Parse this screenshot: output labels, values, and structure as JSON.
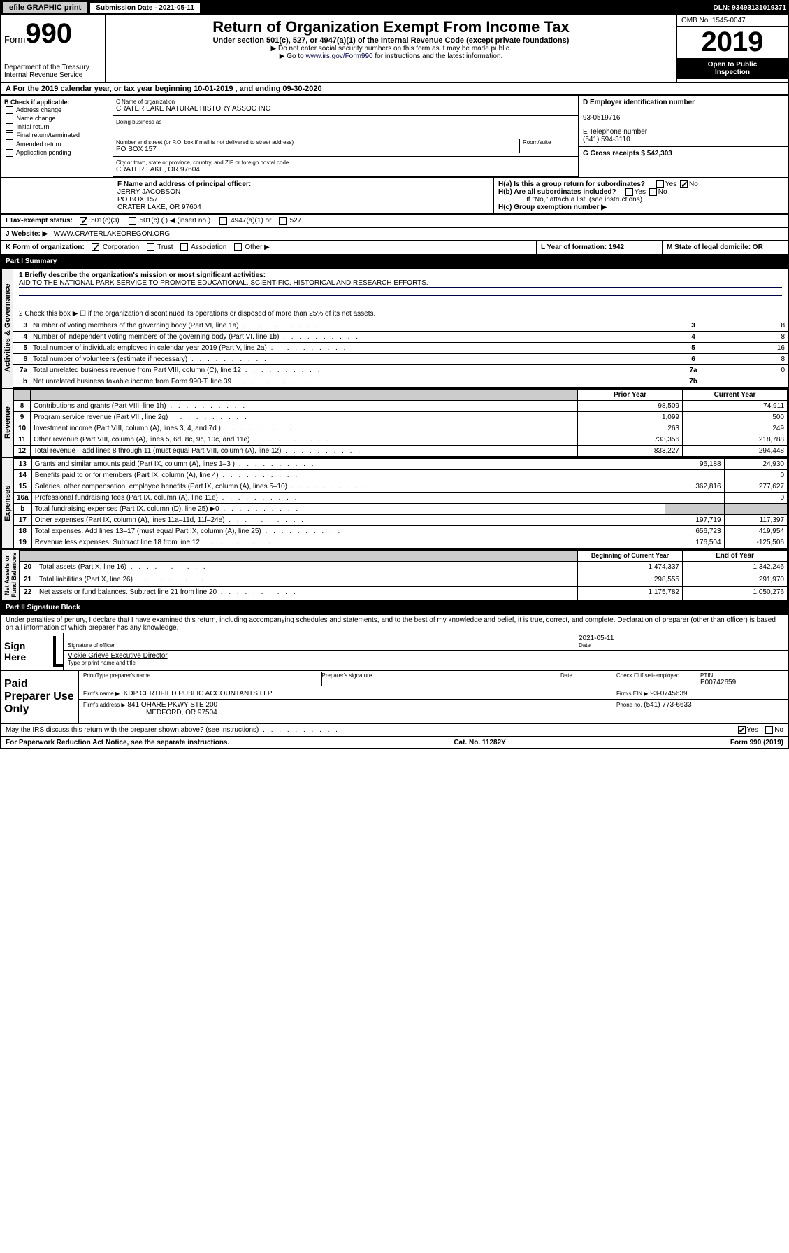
{
  "header": {
    "efile_label": "efile GRAPHIC print",
    "submission_label": "Submission Date - 2021-05-11",
    "dln": "DLN: 93493131019371"
  },
  "form_id": {
    "form_word": "Form",
    "form_num": "990",
    "dept": "Department of the Treasury\nInternal Revenue Service"
  },
  "title_block": {
    "title": "Return of Organization Exempt From Income Tax",
    "sub1": "Under section 501(c), 527, or 4947(a)(1) of the Internal Revenue Code (except private foundations)",
    "sub2": "▶ Do not enter social security numbers on this form as it may be made public.",
    "sub3_pre": "▶ Go to ",
    "sub3_link": "www.irs.gov/Form990",
    "sub3_post": " for instructions and the latest information."
  },
  "right_box": {
    "omb": "OMB No. 1545-0047",
    "year": "2019",
    "open1": "Open to Public",
    "open2": "Inspection"
  },
  "a_row": "A For the 2019 calendar year, or tax year beginning 10-01-2019    , and ending 09-30-2020",
  "col_b": {
    "header": "B Check if applicable:",
    "items": [
      "Address change",
      "Name change",
      "Initial return",
      "Final return/terminated",
      "Amended return",
      "Application pending"
    ]
  },
  "name_block": {
    "c_label": "C Name of organization",
    "org": "CRATER LAKE NATURAL HISTORY ASSOC INC",
    "dba_label": "Doing business as",
    "addr_label": "Number and street (or P.O. box if mail is not delivered to street address)",
    "room_label": "Room/suite",
    "addr": "PO BOX 157",
    "city_label": "City or town, state or province, country, and ZIP or foreign postal code",
    "city": "CRATER LAKE, OR  97604"
  },
  "col_r": {
    "d_label": "D Employer identification number",
    "ein": "93-0519716",
    "e_label": "E Telephone number",
    "phone": "(541) 594-3110",
    "g_label": "G Gross receipts $ 542,303"
  },
  "f_block": {
    "label": "F  Name and address of principal officer:",
    "name": "JERRY JACOBSON",
    "addr1": "PO BOX 157",
    "addr2": "CRATER LAKE, OR  97604"
  },
  "h_block": {
    "ha": "H(a)  Is this a group return for subordinates?",
    "hb": "H(b)  Are all subordinates included?",
    "note": "If \"No,\" attach a list. (see instructions)",
    "hc": "H(c)  Group exemption number ▶"
  },
  "tax_status": {
    "label": "I  Tax-exempt status:",
    "opt1": "501(c)(3)",
    "opt2": "501(c) (   ) ◀ (insert no.)",
    "opt3": "4947(a)(1) or",
    "opt4": "527"
  },
  "website": {
    "label": "J  Website: ▶",
    "value": "WWW.CRATERLAKEOREGON.ORG"
  },
  "k_row": {
    "label": "K Form of organization:",
    "opts": [
      "Corporation",
      "Trust",
      "Association",
      "Other ▶"
    ],
    "l_label": "L Year of formation: 1942",
    "m_label": "M State of legal domicile: OR"
  },
  "part1_header": "Part I      Summary",
  "gov": {
    "l1": "1  Briefly describe the organization's mission or most significant activities:",
    "l1_text": "AID TO THE NATIONAL PARK SERVICE TO PROMOTE EDUCATIONAL, SCIENTIFIC, HISTORICAL AND RESEARCH EFFORTS.",
    "l2": "2    Check this box ▶ ☐  if the organization discontinued its operations or disposed of more than 25% of its net assets.",
    "rows": [
      {
        "n": "3",
        "t": "Number of voting members of the governing body (Part VI, line 1a)",
        "box": "3",
        "v": "8"
      },
      {
        "n": "4",
        "t": "Number of independent voting members of the governing body (Part VI, line 1b)",
        "box": "4",
        "v": "8"
      },
      {
        "n": "5",
        "t": "Total number of individuals employed in calendar year 2019 (Part V, line 2a)",
        "box": "5",
        "v": "16"
      },
      {
        "n": "6",
        "t": "Total number of volunteers (estimate if necessary)",
        "box": "6",
        "v": "8"
      },
      {
        "n": "7a",
        "t": "Total unrelated business revenue from Part VIII, column (C), line 12",
        "box": "7a",
        "v": "0"
      },
      {
        "n": "b",
        "t": "Net unrelated business taxable income from Form 990-T, line 39",
        "box": "7b",
        "v": ""
      }
    ]
  },
  "rev": {
    "header_prior": "Prior Year",
    "header_curr": "Current Year",
    "rows": [
      {
        "n": "8",
        "t": "Contributions and grants (Part VIII, line 1h)",
        "p": "98,509",
        "c": "74,911"
      },
      {
        "n": "9",
        "t": "Program service revenue (Part VIII, line 2g)",
        "p": "1,099",
        "c": "500"
      },
      {
        "n": "10",
        "t": "Investment income (Part VIII, column (A), lines 3, 4, and 7d )",
        "p": "263",
        "c": "249"
      },
      {
        "n": "11",
        "t": "Other revenue (Part VIII, column (A), lines 5, 6d, 8c, 9c, 10c, and 11e)",
        "p": "733,356",
        "c": "218,788"
      },
      {
        "n": "12",
        "t": "Total revenue—add lines 8 through 11 (must equal Part VIII, column (A), line 12)",
        "p": "833,227",
        "c": "294,448"
      }
    ]
  },
  "exp": {
    "rows": [
      {
        "n": "13",
        "t": "Grants and similar amounts paid (Part IX, column (A), lines 1–3 )",
        "p": "96,188",
        "c": "24,930"
      },
      {
        "n": "14",
        "t": "Benefits paid to or for members (Part IX, column (A), line 4)",
        "p": "",
        "c": "0"
      },
      {
        "n": "15",
        "t": "Salaries, other compensation, employee benefits (Part IX, column (A), lines 5–10)",
        "p": "362,816",
        "c": "277,627"
      },
      {
        "n": "16a",
        "t": "Professional fundraising fees (Part IX, column (A), line 11e)",
        "p": "",
        "c": "0"
      },
      {
        "n": "b",
        "t": "Total fundraising expenses (Part IX, column (D), line 25) ▶0",
        "p": "—",
        "c": "—"
      },
      {
        "n": "17",
        "t": "Other expenses (Part IX, column (A), lines 11a–11d, 11f–24e)",
        "p": "197,719",
        "c": "117,397"
      },
      {
        "n": "18",
        "t": "Total expenses. Add lines 13–17 (must equal Part IX, column (A), line 25)",
        "p": "656,723",
        "c": "419,954"
      },
      {
        "n": "19",
        "t": "Revenue less expenses. Subtract line 18 from line 12",
        "p": "176,504",
        "c": "-125,506"
      }
    ]
  },
  "net": {
    "header_beg": "Beginning of Current Year",
    "header_end": "End of Year",
    "rows": [
      {
        "n": "20",
        "t": "Total assets (Part X, line 16)",
        "p": "1,474,337",
        "c": "1,342,246"
      },
      {
        "n": "21",
        "t": "Total liabilities (Part X, line 26)",
        "p": "298,555",
        "c": "291,970"
      },
      {
        "n": "22",
        "t": "Net assets or fund balances. Subtract line 21 from line 20",
        "p": "1,175,782",
        "c": "1,050,276"
      }
    ]
  },
  "part2_header": "Part II      Signature Block",
  "perjury": "Under penalties of perjury, I declare that I have examined this return, including accompanying schedules and statements, and to the best of my knowledge and belief, it is true, correct, and complete. Declaration of preparer (other than officer) is based on all information of which preparer has any knowledge.",
  "sign": {
    "label": "Sign Here",
    "sig_of_officer": "Signature of officer",
    "date": "2021-05-11",
    "date_label": "Date",
    "name": "Vickie Grieve  Executive Director",
    "name_label": "Type or print name and title"
  },
  "paid": {
    "label": "Paid Preparer Use Only",
    "h1": "Print/Type preparer's name",
    "h2": "Preparer's signature",
    "h3": "Date",
    "h4_check": "Check ☐ if self-employed",
    "h5": "PTIN",
    "ptin": "P00742659",
    "firm_name_label": "Firm's name     ▶",
    "firm_name": "KDP CERTIFIED PUBLIC ACCOUNTANTS LLP",
    "firm_ein_label": "Firm's EIN ▶",
    "firm_ein": "93-0745639",
    "firm_addr_label": "Firm's address ▶",
    "firm_addr": "841 OHARE PKWY STE 200",
    "firm_city": "MEDFORD, OR  97504",
    "phone_label": "Phone no.",
    "phone": "(541) 773-6633"
  },
  "discuss": "May the IRS discuss this return with the preparer shown above? (see instructions)",
  "footer": {
    "left": "For Paperwork Reduction Act Notice, see the separate instructions.",
    "mid": "Cat. No. 11282Y",
    "right": "Form 990 (2019)"
  }
}
